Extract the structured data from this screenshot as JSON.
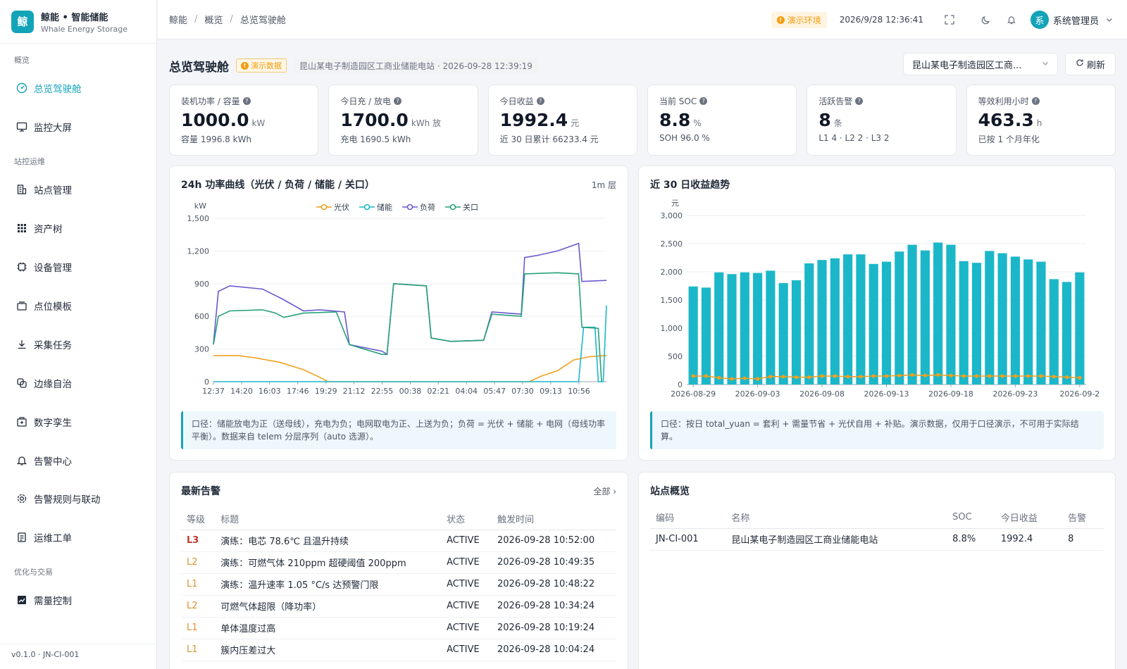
{
  "brand": {
    "logo_char": "鲸",
    "title": "鲸能 • 智能储能",
    "subtitle": "Whale Energy Storage"
  },
  "sidebar": {
    "groups": [
      "概览",
      "站控运维",
      "优化与交易"
    ],
    "items": [
      {
        "label": "总览驾驶舱",
        "icon": "dashboard-icon",
        "active": true
      },
      {
        "label": "监控大屏",
        "icon": "monitor-icon"
      },
      {
        "label": "站点管理",
        "icon": "building-icon"
      },
      {
        "label": "资产树",
        "icon": "grid-icon"
      },
      {
        "label": "设备管理",
        "icon": "chip-icon"
      },
      {
        "label": "点位模板",
        "icon": "template-icon"
      },
      {
        "label": "采集任务",
        "icon": "download-icon"
      },
      {
        "label": "边缘自治",
        "icon": "edge-icon"
      },
      {
        "label": "数字孪生",
        "icon": "twin-icon"
      },
      {
        "label": "告警中心",
        "icon": "bell-icon"
      },
      {
        "label": "告警规则与联动",
        "icon": "gear-icon"
      },
      {
        "label": "运维工单",
        "icon": "clipboard-icon"
      },
      {
        "label": "需量控制",
        "icon": "chart-icon"
      }
    ],
    "footer": "v0.1.0 · JN-CI-001"
  },
  "topbar": {
    "breadcrumb": [
      "鲸能",
      "概览",
      "总览驾驶舱"
    ],
    "env_badge": "演示环境",
    "datetime": "2026/9/28 12:36:41",
    "user_initial": "系",
    "user_name": "系统管理员"
  },
  "page": {
    "title": "总览驾驶舱",
    "demo_tag": "演示数据",
    "meta": "昆山某电子制造园区工商业储能电站 · 2026-09-28 12:39:19",
    "site_select": "昆山某电子制造园区工商...",
    "refresh_label": "刷新"
  },
  "kpis": [
    {
      "label": "装机功率 / 容量",
      "value": "1000.0",
      "unit": "kW",
      "sub": "容量 1996.8 kWh"
    },
    {
      "label": "今日充 / 放电",
      "value": "1700.0",
      "unit": "kWh 放",
      "sub": "充电 1690.5 kWh"
    },
    {
      "label": "今日收益",
      "value": "1992.4",
      "unit": "元",
      "sub": "近 30 日累计 66233.4 元"
    },
    {
      "label": "当前 SOC",
      "value": "8.8",
      "unit": "%",
      "sub": "SOH 96.0 %"
    },
    {
      "label": "活跃告警",
      "value": "8",
      "unit": "条",
      "sub": "L1 4 · L2 2 · L3 2"
    },
    {
      "label": "等效利用小时",
      "value": "463.3",
      "unit": "h",
      "sub": "已按 1 个月年化"
    }
  ],
  "power_card": {
    "title": "24h 功率曲线（光伏 / 负荷 / 储能 / 关口）",
    "extra": "1m 层",
    "note": "口径：储能放电为正（送母线），充电为负；电网取电为正、上送为负；负荷 = 光伏 + 储能 + 电网（母线功率平衡）。数据来自 telem 分层序列（auto 选源）。"
  },
  "revenue_card": {
    "title": "近 30 日收益趋势",
    "note": "口径：按日 total_yuan = 套利 + 需量节省 + 光伏自用 + 补贴。演示数据，仅用于口径演示，不可用于实际结算。"
  },
  "alarms_card": {
    "title": "最新告警",
    "more": "全部",
    "columns": [
      "等级",
      "标题",
      "状态",
      "触发时间"
    ],
    "rows": [
      [
        "L3",
        "演练：电芯 78.6℃ 且温升持续",
        "ACTIVE",
        "2026-09-28 10:52:00"
      ],
      [
        "L2",
        "演练：可燃气体 210ppm 超硬阈值 200ppm",
        "ACTIVE",
        "2026-09-28 10:49:35"
      ],
      [
        "L1",
        "演练：温升速率 1.05 °C/s 达预警门限",
        "ACTIVE",
        "2026-09-28 10:48:22"
      ],
      [
        "L2",
        "可燃气体超限（降功率）",
        "ACTIVE",
        "2026-09-28 10:34:24"
      ],
      [
        "L1",
        "单体温度过高",
        "ACTIVE",
        "2026-09-28 10:19:24"
      ],
      [
        "L1",
        "簇内压差过大",
        "ACTIVE",
        "2026-09-28 10:04:24"
      ]
    ]
  },
  "sites_card": {
    "title": "站点概览",
    "columns": [
      "编码",
      "名称",
      "SOC",
      "今日收益",
      "告警"
    ],
    "rows": [
      [
        "JN-CI-001",
        "昆山某电子制造园区工商业储能电站",
        "8.8%",
        "1992.4",
        "8"
      ]
    ]
  },
  "colors": {
    "accent": "#13a3b8",
    "pv": "#f0a020",
    "storage": "#1bb7c9",
    "load": "#6a5acd",
    "grid": "#26a17a",
    "bar": "#1bb7c9"
  },
  "chart_data": [
    {
      "type": "line",
      "title": "24h 功率曲线（光伏 / 负荷 / 储能 / 关口）",
      "ylabel": "kW",
      "ylim": [
        0,
        1500
      ],
      "yticks": [
        "0",
        "300",
        "600",
        "900",
        "1,200",
        "1,500"
      ],
      "x_labels": [
        "12:37",
        "14:20",
        "16:03",
        "17:46",
        "19:29",
        "21:12",
        "22:55",
        "00:38",
        "02:21",
        "04:04",
        "05:47",
        "07:30",
        "09:13",
        "10:56"
      ],
      "x_hours": [
        0,
        1.72,
        3.43,
        5.15,
        6.87,
        8.58,
        10.3,
        12.02,
        13.73,
        15.45,
        17.17,
        18.88,
        20.6,
        22.32
      ],
      "x_max": 24,
      "legend": [
        "光伏",
        "储能",
        "负荷",
        "关口"
      ],
      "series": [
        {
          "name": "光伏",
          "points": [
            [
              0,
              240
            ],
            [
              1.5,
              240
            ],
            [
              2.5,
              220
            ],
            [
              4,
              180
            ],
            [
              5.5,
              110
            ],
            [
              6.5,
              40
            ],
            [
              7,
              0
            ],
            [
              19.3,
              0
            ],
            [
              20,
              50
            ],
            [
              21,
              100
            ],
            [
              22,
              200
            ],
            [
              23,
              230
            ],
            [
              24,
              240
            ]
          ]
        },
        {
          "name": "储能",
          "points": [
            [
              0,
              0
            ],
            [
              22.3,
              0
            ],
            [
              22.6,
              500
            ],
            [
              23.3,
              500
            ],
            [
              23.5,
              0
            ],
            [
              23.8,
              0
            ],
            [
              24,
              700
            ]
          ]
        },
        {
          "name": "负荷",
          "points": [
            [
              0,
              350
            ],
            [
              0.3,
              830
            ],
            [
              1,
              880
            ],
            [
              3,
              850
            ],
            [
              4.2,
              760
            ],
            [
              5.5,
              650
            ],
            [
              6.5,
              660
            ],
            [
              8,
              640
            ],
            [
              8.3,
              340
            ],
            [
              10.3,
              280
            ],
            [
              10.6,
              250
            ],
            [
              11,
              900
            ],
            [
              13,
              880
            ],
            [
              13.3,
              400
            ],
            [
              14.5,
              370
            ],
            [
              16.5,
              380
            ],
            [
              17,
              640
            ],
            [
              18.8,
              620
            ],
            [
              19,
              1140
            ],
            [
              19.8,
              1160
            ],
            [
              20.4,
              1180
            ],
            [
              21,
              1200
            ],
            [
              22.3,
              1270
            ],
            [
              22.5,
              920
            ],
            [
              24,
              930
            ]
          ]
        },
        {
          "name": "关口",
          "points": [
            [
              0,
              340
            ],
            [
              0.3,
              600
            ],
            [
              1,
              650
            ],
            [
              3,
              660
            ],
            [
              3.8,
              630
            ],
            [
              4.3,
              590
            ],
            [
              5.5,
              630
            ],
            [
              7.5,
              640
            ],
            [
              8.3,
              340
            ],
            [
              10.3,
              250
            ],
            [
              10.6,
              250
            ],
            [
              11,
              900
            ],
            [
              13,
              880
            ],
            [
              13.3,
              400
            ],
            [
              14.5,
              370
            ],
            [
              16.5,
              380
            ],
            [
              17,
              620
            ],
            [
              18.8,
              600
            ],
            [
              19,
              990
            ],
            [
              21,
              1000
            ],
            [
              22.3,
              990
            ],
            [
              22.5,
              500
            ],
            [
              23.5,
              490
            ],
            [
              23.7,
              0
            ]
          ]
        }
      ]
    },
    {
      "type": "bar",
      "title": "近 30 日收益趋势",
      "ylabel": "元",
      "ylim": [
        0,
        3000
      ],
      "yticks": [
        "0",
        "500",
        "1,000",
        "1,500",
        "2,000",
        "2,500",
        "3,000"
      ],
      "x_labels": [
        "2026-08-29",
        "2026-09-03",
        "2026-09-08",
        "2026-09-13",
        "2026-09-18",
        "2026-09-23",
        "2026-09-2"
      ],
      "series": [
        {
          "name": "total",
          "values": [
            1740,
            1720,
            1990,
            1960,
            1990,
            1980,
            2020,
            1800,
            1850,
            2150,
            2210,
            2240,
            2310,
            2310,
            2140,
            2180,
            2360,
            2480,
            2380,
            2520,
            2480,
            2190,
            2160,
            2370,
            2330,
            2270,
            2220,
            2180,
            1870,
            1820,
            1990
          ]
        },
        {
          "name": "line",
          "values": [
            150,
            150,
            120,
            100,
            110,
            100,
            140,
            140,
            130,
            130,
            150,
            150,
            140,
            140,
            150,
            150,
            160,
            170,
            160,
            170,
            160,
            150,
            150,
            150,
            150,
            150,
            150,
            150,
            140,
            130,
            120
          ]
        }
      ]
    }
  ]
}
